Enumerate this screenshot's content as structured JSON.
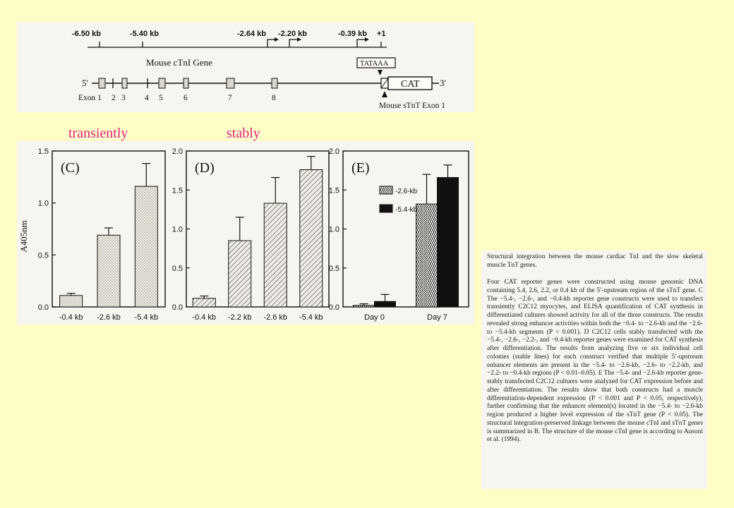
{
  "gene_map": {
    "positions": [
      "-6.50 kb",
      "-5.40 kb",
      "-2.64 kb",
      "-2.20 kb",
      "-0.39 kb",
      "+1"
    ],
    "gene_label": "Mouse cTnI Gene",
    "tata_label": "TATAAA",
    "cat_label": "CAT",
    "five_prime": "5'",
    "three_prime": "3'",
    "exons": [
      "Exon 1",
      "2",
      "3",
      "4",
      "5",
      "6",
      "7",
      "8"
    ],
    "stnt_label": "Mouse sTnT Exon 1"
  },
  "annotations": {
    "transiently": "transiently",
    "stably": "stably"
  },
  "chart_data": [
    {
      "type": "bar",
      "panel_label": "(C)",
      "ylabel": "A405nm",
      "ylim": [
        0.0,
        1.5
      ],
      "yticks": [
        "0.0",
        "0.5",
        "1.0",
        "1.5"
      ],
      "categories": [
        "-0.4 kb",
        "-2.6 kb",
        "-5.4 kb"
      ],
      "values": [
        0.11,
        0.69,
        1.16
      ],
      "errors": [
        0.02,
        0.07,
        0.22
      ]
    },
    {
      "type": "bar",
      "panel_label": "(D)",
      "ylim": [
        0.0,
        2.0
      ],
      "yticks": [
        "0.0",
        "0.5",
        "1.0",
        "1.5",
        "2.0"
      ],
      "categories": [
        "-0.4 kb",
        "-2.2 kb",
        "-2.6 kb",
        "-5.4 kb"
      ],
      "values": [
        0.11,
        0.85,
        1.33,
        1.76
      ],
      "errors": [
        0.03,
        0.3,
        0.33,
        0.17
      ]
    },
    {
      "type": "bar",
      "panel_label": "(E)",
      "ylim": [
        0.0,
        2.0
      ],
      "yticks": [
        "0.0",
        "0.5",
        "1.0",
        "1.5",
        "2.0"
      ],
      "categories": [
        "Day 0",
        "Day 7"
      ],
      "series": [
        {
          "name": "-2.6-kb",
          "values": [
            0.02,
            1.32
          ],
          "errors": [
            0.02,
            0.38
          ]
        },
        {
          "name": "-5.4-kb",
          "values": [
            0.07,
            1.66
          ],
          "errors": [
            0.09,
            0.16
          ]
        }
      ],
      "legend_placement": "upper-left"
    }
  ],
  "caption": {
    "title": "Structural integration between the mouse cardiac TnI and the slow skeletal muscle TnT genes.",
    "paragraphs": [
      "Four CAT reporter genes were constructed using mouse genomic DNA containing 5.4, 2.6, 2.2, or 0.4 kb of the 5′-upstream region of the sTnT gene. C The −5.4-, −2.6-, and −0.4-kb reporter gene constructs were used to transfect transiently C2C12 myocytes, and ELISA quantification of CAT synthesis in differentiated cultures showed activity for all of the three constructs. The results revealed strong enhancer activities within both the −0.4- to −2.6-kb and the −2.6- to −5.4-kb segments (P < 0.001). D C2C12 cells stably transfected with the −5.4-, −2.6-, −2.2-, and −0.4-kb reporter genes were examined for CAT synthesis after differentiation. The results from analyzing five or six individual cell colonies (stable lines) for each construct verified that multiple 5′-upstream enhancer elements are present in the −5.4- to −2.6-kb, −2.6- to −2.2-kb, and −2.2- to −0.4-kb regions (P < 0.01–0.05). E The −5.4- and −2.6-kb reporter gene-stably transfected C2C12 cultures were analyzed for CAT expression before and after differentiation. The results show that both constructs had a muscle differentiation-dependent expression (P < 0.001 and P < 0.05, respectively), further confirming that the enhancer element(s) located in the −5.4- to −2.6-kb region produced a higher level expression of the sTnT gene (P < 0.05). The structural integration-preserved linkage between the mouse cTnI and sTnT genes is summarized in B. The structure of the mouse cTnI gene is according to Ausoni et al. (1994)."
    ]
  }
}
